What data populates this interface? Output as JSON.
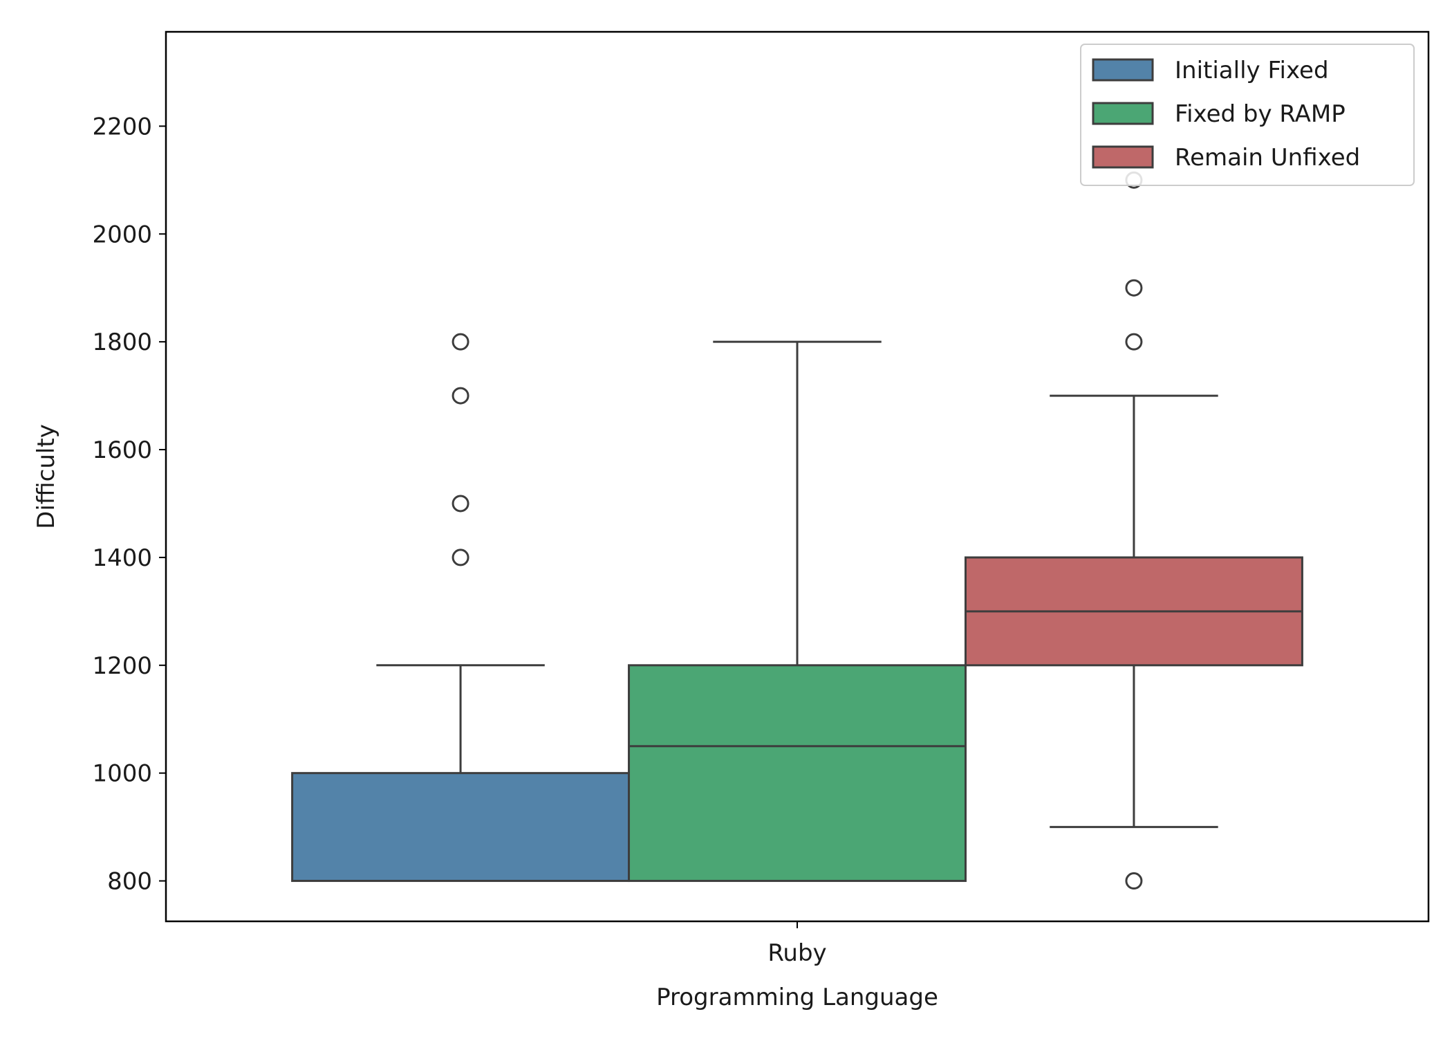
{
  "chart_data": {
    "type": "box",
    "xlabel": "Programming Language",
    "ylabel": "Difficulty",
    "categories": [
      "Ruby"
    ],
    "ylim": [
      725,
      2375
    ],
    "yticks": [
      800,
      1000,
      1200,
      1400,
      1600,
      1800,
      2000,
      2200
    ],
    "grid": false,
    "legend_position": "top-right",
    "series": [
      {
        "name": "Initially Fixed",
        "color": "#5383a9",
        "stats": {
          "whisker_low": 800,
          "q1": 800,
          "median": 800,
          "q3": 1000,
          "whisker_high": 1200
        },
        "outliers": [
          1400,
          1500,
          1700,
          1800
        ]
      },
      {
        "name": "Fixed by RAMP",
        "color": "#4ba674",
        "stats": {
          "whisker_low": 800,
          "q1": 800,
          "median": 1050,
          "q3": 1200,
          "whisker_high": 1800
        },
        "outliers": []
      },
      {
        "name": "Remain Unfixed",
        "color": "#bf6869",
        "stats": {
          "whisker_low": 900,
          "q1": 1200,
          "median": 1300,
          "q3": 1400,
          "whisker_high": 1700
        },
        "outliers": [
          800,
          1800,
          1900,
          2100
        ]
      }
    ]
  }
}
